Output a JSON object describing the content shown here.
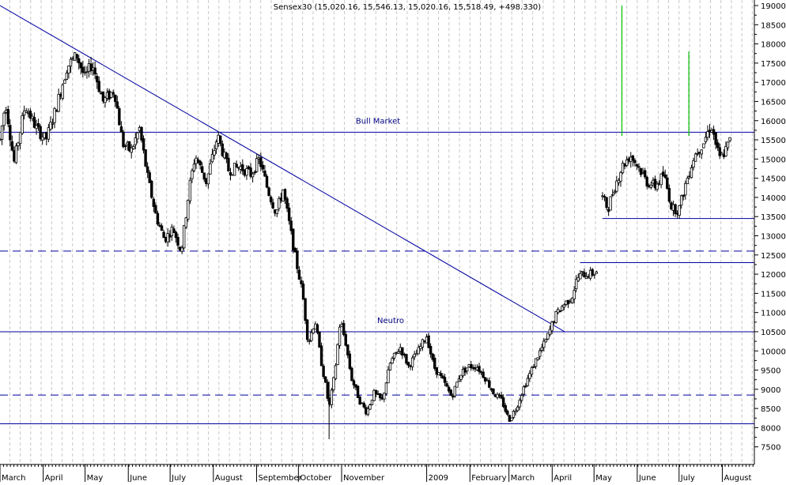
{
  "chart_data": {
    "type": "candlestick",
    "title": "Sensex30 (15,020.16, 15,546.13, 15,020.16, 15,518.49, +498.330)",
    "ylim": [
      7000,
      19000
    ],
    "yticks": [
      7500,
      8000,
      8500,
      9000,
      9500,
      10000,
      10500,
      11000,
      11500,
      12000,
      12500,
      13000,
      13500,
      14000,
      14500,
      15000,
      15500,
      16000,
      16500,
      17000,
      17500,
      18000,
      18500,
      19000
    ],
    "ytick_labels": [
      "7500",
      "8000",
      "8500",
      "9000",
      "9500",
      "10000",
      "10500",
      "11000",
      "11500",
      "12000",
      "12500",
      "13000",
      "13500",
      "14000",
      "14500",
      "15000",
      "15500",
      "16000",
      "16500",
      "17000",
      "17500",
      "18000",
      "18500",
      "19000"
    ],
    "x_labels": [
      {
        "label": "March",
        "day": 0
      },
      {
        "label": "April",
        "day": 31
      },
      {
        "label": "May",
        "day": 61
      },
      {
        "label": "June",
        "day": 92
      },
      {
        "label": "July",
        "day": 122
      },
      {
        "label": "August",
        "day": 153
      },
      {
        "label": "September",
        "day": 184
      },
      {
        "label": "October",
        "day": 214
      },
      {
        "label": "November",
        "day": 245
      },
      {
        "label": "2009",
        "day": 306
      },
      {
        "label": "February",
        "day": 337
      },
      {
        "label": "March",
        "day": 365
      },
      {
        "label": "April",
        "day": 396
      },
      {
        "label": "May",
        "day": 426
      },
      {
        "label": "June",
        "day": 457
      },
      {
        "label": "July",
        "day": 487
      },
      {
        "label": "August",
        "day": 518
      }
    ],
    "xlim_days": [
      0,
      541
    ],
    "vertical_grid": true,
    "horizontal_lines": [
      {
        "value": 15700,
        "style": "solid",
        "label": "Bull Market"
      },
      {
        "value": 12600,
        "style": "dashed"
      },
      {
        "value": 10500,
        "style": "solid",
        "label": "Neutro"
      },
      {
        "value": 8850,
        "style": "dashed"
      },
      {
        "value": 8100,
        "style": "solid"
      }
    ],
    "segments": [
      {
        "x1": 0,
        "y1": 19000,
        "x2": 405,
        "y2": 10500,
        "style": "trendline"
      },
      {
        "x1": 416,
        "y1": 12300,
        "x2": 541,
        "y2": 12300,
        "style": "resistance"
      },
      {
        "x1": 432,
        "y1": 13450,
        "x2": 541,
        "y2": 13450,
        "style": "support"
      }
    ],
    "volume_spikes": [
      {
        "day": 446,
        "top": 19000,
        "bottom": 15600
      },
      {
        "day": 494,
        "top": 17800,
        "bottom": 15600
      }
    ],
    "anchors": [
      [
        0,
        15500
      ],
      [
        4,
        16500
      ],
      [
        10,
        14900
      ],
      [
        18,
        16400
      ],
      [
        26,
        15800
      ],
      [
        33,
        15500
      ],
      [
        40,
        16300
      ],
      [
        48,
        17400
      ],
      [
        55,
        17700
      ],
      [
        61,
        17100
      ],
      [
        66,
        17500
      ],
      [
        74,
        16500
      ],
      [
        82,
        16800
      ],
      [
        88,
        15400
      ],
      [
        94,
        15200
      ],
      [
        100,
        15800
      ],
      [
        106,
        14500
      ],
      [
        112,
        13500
      ],
      [
        118,
        12900
      ],
      [
        124,
        13200
      ],
      [
        130,
        12600
      ],
      [
        136,
        14300
      ],
      [
        140,
        15100
      ],
      [
        148,
        14400
      ],
      [
        156,
        15600
      ],
      [
        164,
        14700
      ],
      [
        172,
        14800
      ],
      [
        180,
        14600
      ],
      [
        186,
        15000
      ],
      [
        192,
        14200
      ],
      [
        198,
        13600
      ],
      [
        203,
        14200
      ],
      [
        208,
        13200
      ],
      [
        212,
        12400
      ],
      [
        217,
        11500
      ],
      [
        221,
        10200
      ],
      [
        226,
        10800
      ],
      [
        230,
        9800
      ],
      [
        234,
        9000
      ],
      [
        236,
        8500
      ],
      [
        240,
        9400
      ],
      [
        244,
        10800
      ],
      [
        248,
        10200
      ],
      [
        252,
        9300
      ],
      [
        258,
        8700
      ],
      [
        263,
        8400
      ],
      [
        268,
        8900
      ],
      [
        274,
        8700
      ],
      [
        280,
        9700
      ],
      [
        287,
        10100
      ],
      [
        293,
        9600
      ],
      [
        300,
        10000
      ],
      [
        306,
        10400
      ],
      [
        311,
        9600
      ],
      [
        318,
        9200
      ],
      [
        324,
        8800
      ],
      [
        330,
        9400
      ],
      [
        336,
        9600
      ],
      [
        342,
        9600
      ],
      [
        348,
        9300
      ],
      [
        354,
        8900
      ],
      [
        360,
        8700
      ],
      [
        365,
        8200
      ],
      [
        370,
        8500
      ],
      [
        375,
        9000
      ],
      [
        380,
        9400
      ],
      [
        386,
        9900
      ],
      [
        392,
        10300
      ],
      [
        398,
        10900
      ],
      [
        404,
        11200
      ],
      [
        410,
        11400
      ],
      [
        414,
        11900
      ],
      [
        418,
        12000
      ],
      [
        424,
        12000
      ],
      [
        429,
        12100
      ],
      [
        432,
        14000
      ],
      [
        436,
        13700
      ],
      [
        440,
        14200
      ],
      [
        446,
        14800
      ],
      [
        452,
        15100
      ],
      [
        458,
        14800
      ],
      [
        464,
        14400
      ],
      [
        470,
        14300
      ],
      [
        476,
        14600
      ],
      [
        482,
        13700
      ],
      [
        487,
        13700
      ],
      [
        492,
        14400
      ],
      [
        498,
        15100
      ],
      [
        504,
        15400
      ],
      [
        510,
        15900
      ],
      [
        516,
        15000
      ],
      [
        520,
        15200
      ],
      [
        524,
        15520
      ]
    ],
    "gaps": [
      [
        429,
        432
      ]
    ],
    "seed": 7
  }
}
